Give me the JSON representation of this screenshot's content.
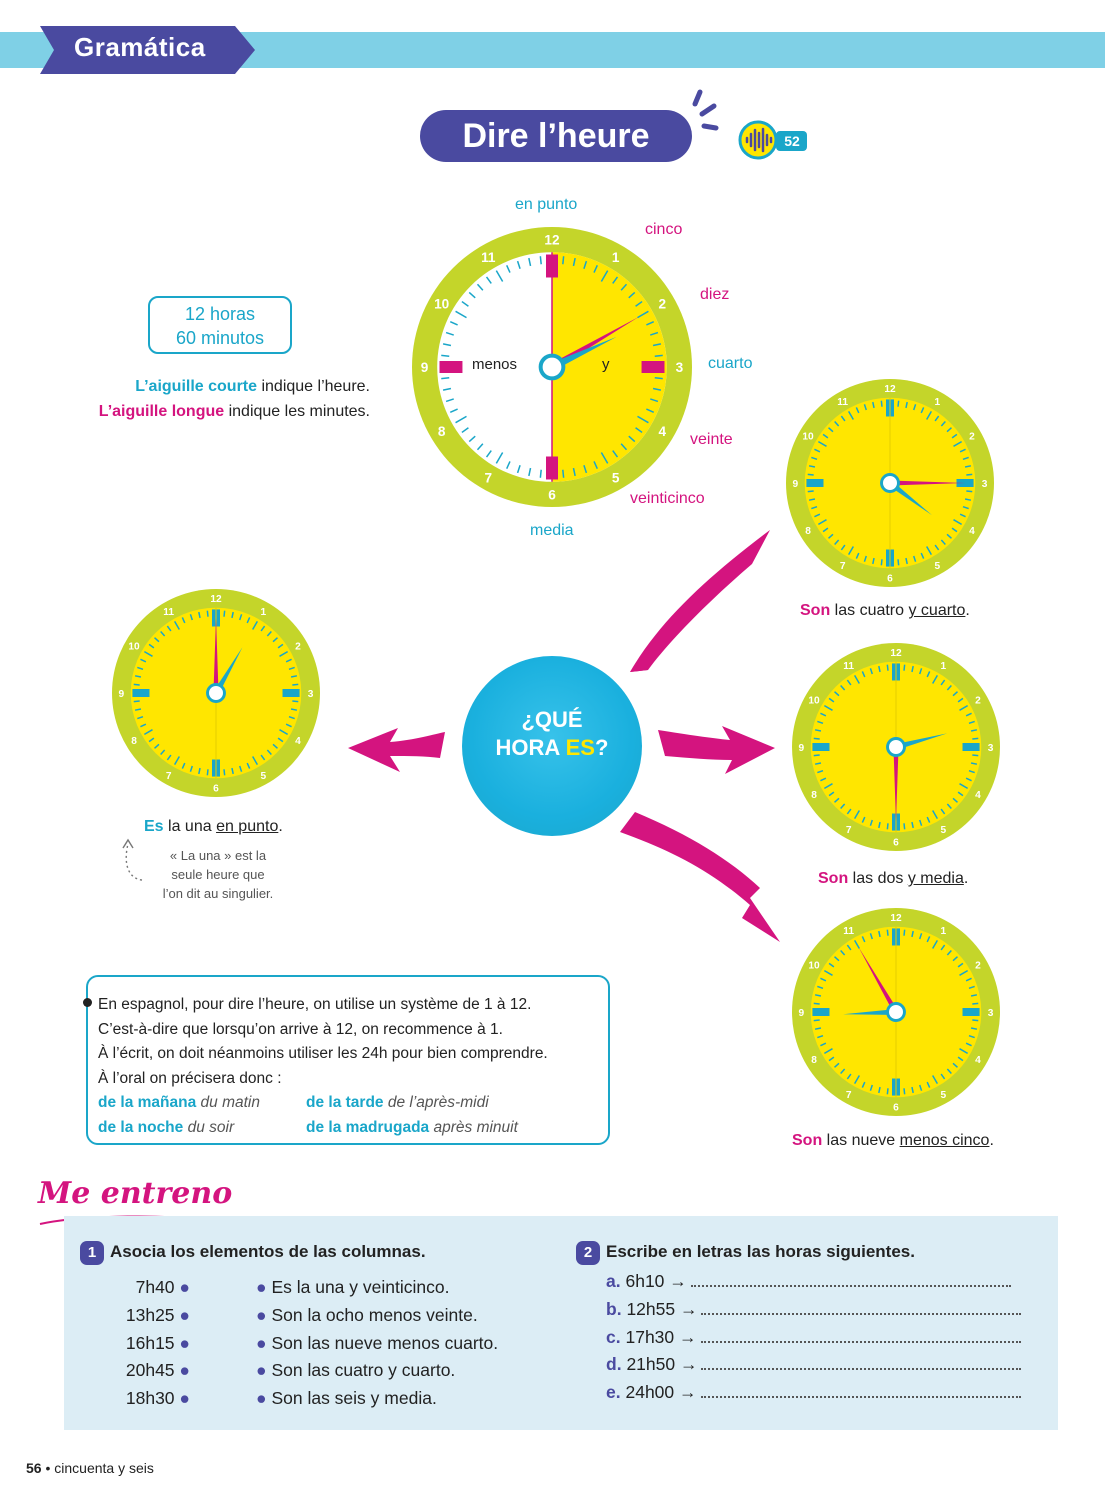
{
  "header": {
    "section": "Gramática"
  },
  "title": {
    "text": "Dire l’heure",
    "audio_track": "52",
    "audio_icon": "audio-wave-icon"
  },
  "intro": {
    "hours_line1": "12 horas",
    "hours_line2": "60 minutos",
    "short_hand_bold": "L’aiguille courte",
    "short_hand_rest": " indique l’heure.",
    "long_hand_bold": "L’aiguille longue",
    "long_hand_rest": " indique les minutes."
  },
  "main_clock": {
    "label_top": "en punto",
    "label_bottom": "media",
    "label_left": "menos",
    "label_right": "y",
    "minute_labels": [
      "cinco",
      "diez",
      "cuarto",
      "veinte",
      "veinticinco"
    ],
    "numbers": [
      "12",
      "1",
      "2",
      "3",
      "4",
      "5",
      "6",
      "7",
      "8",
      "9",
      "10",
      "11"
    ]
  },
  "center_bubble": {
    "line1": "¿QUÉ",
    "line2a": "HORA ",
    "line2b": "ES",
    "line2c": "?"
  },
  "examples": [
    {
      "verb": "Es",
      "mid": " la una ",
      "tail": "en punto",
      "end": ".",
      "hour": 1,
      "minute": 0
    },
    {
      "verb": "Son",
      "mid": " las cuatro ",
      "tail": "y cuarto",
      "end": ".",
      "hour": 4,
      "minute": 15
    },
    {
      "verb": "Son",
      "mid": " las dos ",
      "tail": "y media",
      "end": ".",
      "hour": 2,
      "minute": 30
    },
    {
      "verb": "Son",
      "mid": " las nueve ",
      "tail": "menos cinco",
      "end": ".",
      "hour": 8,
      "minute": 55
    }
  ],
  "note_una": {
    "line1": "« La una » est la",
    "line2": "seule heure que",
    "line3": "l’on dit au singulier."
  },
  "info": {
    "line1": "En espagnol, pour dire l’heure, on utilise un système de 1 à 12.",
    "line2": "C’est-à-dire que lorsqu’on arrive à 12, on recommence à 1.",
    "line3": "À l’écrit, on doit néanmoins utiliser les 24h pour bien comprendre.",
    "line4": "À l’oral on précisera donc :",
    "terms": [
      {
        "es": "de la mañana",
        "fr": "du matin"
      },
      {
        "es": "de la tarde",
        "fr": "de l’après-midi"
      },
      {
        "es": "de la noche",
        "fr": "du soir"
      },
      {
        "es": "de la madrugada",
        "fr": "après minuit"
      }
    ]
  },
  "practice": {
    "heading": "Me entreno",
    "ex1": {
      "number": "1",
      "title": "Asocia los elementos de las columnas.",
      "left": [
        "7h40",
        "13h25",
        "16h15",
        "20h45",
        "18h30"
      ],
      "right": [
        "Es la una y veinticinco.",
        "Son la ocho menos veinte.",
        "Son las nueve menos cuarto.",
        "Son las cuatro y cuarto.",
        "Son las seis y media."
      ]
    },
    "ex2": {
      "number": "2",
      "title": "Escribe en letras las horas siguientes.",
      "items": [
        {
          "letter": "a.",
          "time": "6h10 →"
        },
        {
          "letter": "b.",
          "time": "12h55 →"
        },
        {
          "letter": "c.",
          "time": "17h30 →"
        },
        {
          "letter": "d.",
          "time": "21h50 →"
        },
        {
          "letter": "e.",
          "time": "24h00 →"
        }
      ]
    }
  },
  "footer": {
    "page": "56",
    "words": "cincuenta y seis"
  },
  "colors": {
    "cyan": "#1aa6c9",
    "magenta": "#d4147f",
    "purple": "#4a4aa0",
    "lime": "#c4d52a",
    "yellow": "#ffe600",
    "band": "#7fd0e6"
  }
}
